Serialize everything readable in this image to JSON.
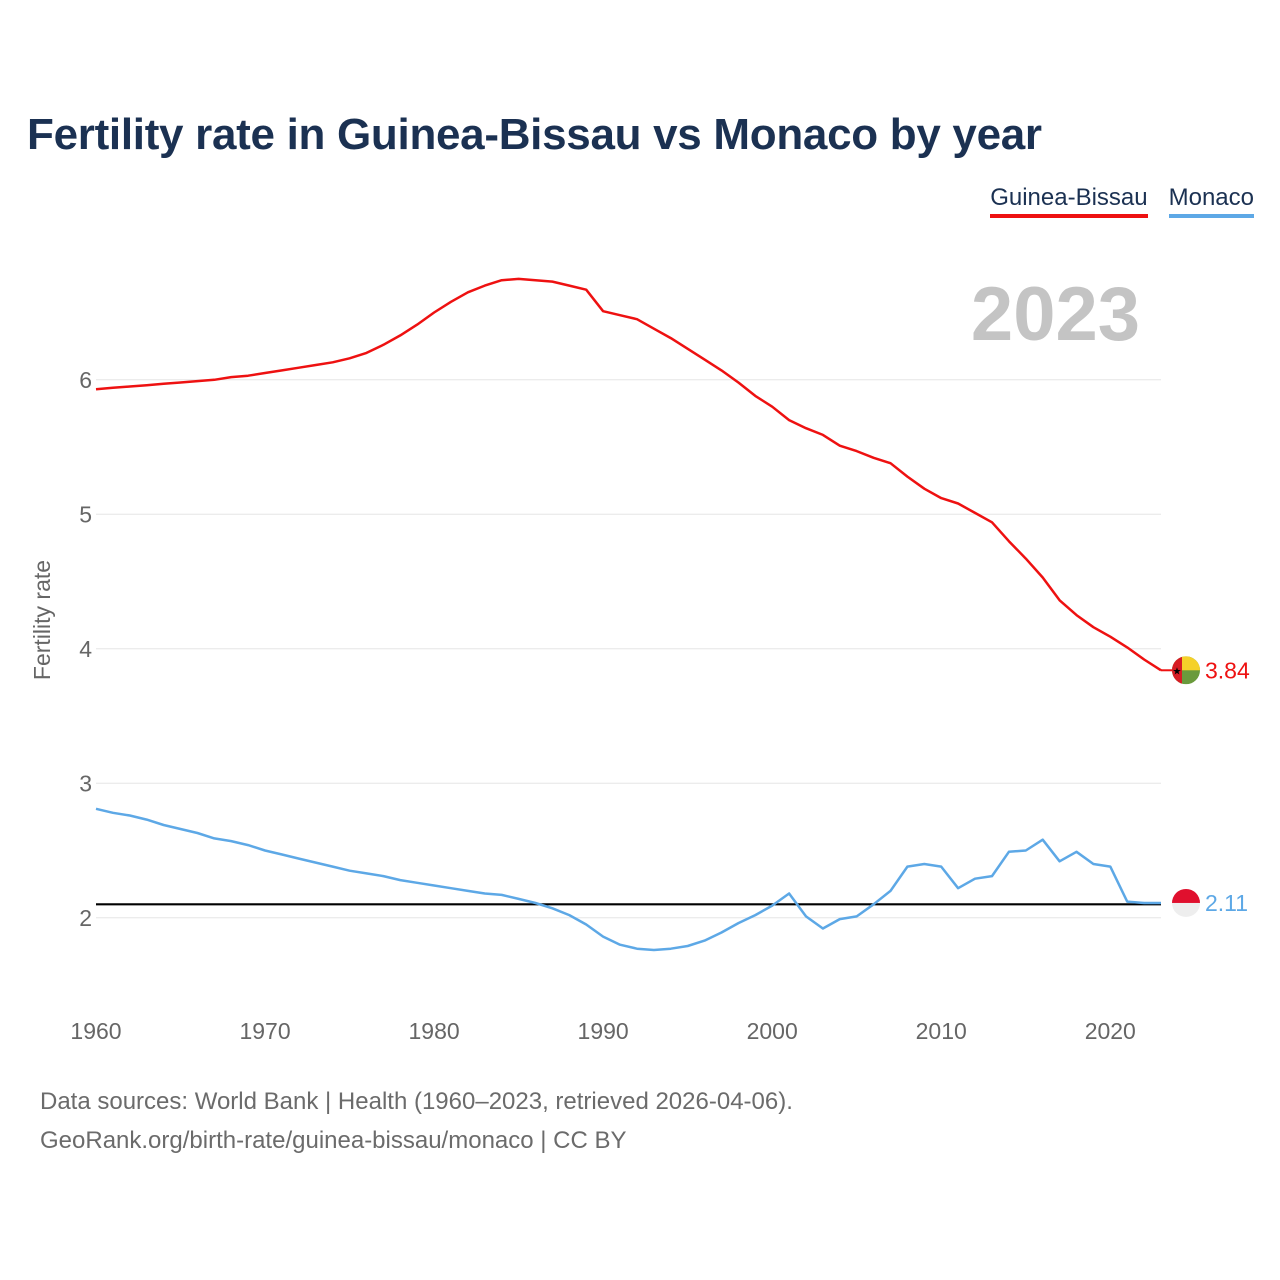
{
  "title": "Fertility rate in Guinea-Bissau vs Monaco by year",
  "legend": [
    {
      "label": "Guinea-Bissau",
      "color": "#ee1111"
    },
    {
      "label": "Monaco",
      "color": "#5da8e6"
    }
  ],
  "footer": {
    "source": "Data sources: World Bank | Health (1960–2023, retrieved 2026-04-06).",
    "credit": "GeoRank.org/birth-rate/guinea-bissau/monaco | CC BY"
  },
  "chart_data": {
    "type": "line",
    "title": "Fertility rate in Guinea-Bissau vs Monaco by year",
    "year_label": "2023",
    "xlabel": "",
    "ylabel": "Fertility rate",
    "xlim": [
      1960,
      2023
    ],
    "ylim": [
      1.5,
      6.95
    ],
    "x_ticks": [
      1960,
      1970,
      1980,
      1990,
      2000,
      2010,
      2020
    ],
    "y_ticks": [
      2,
      3,
      4,
      5,
      6
    ],
    "grid": true,
    "reference_line": {
      "value": 2.1,
      "color": "#000000"
    },
    "x": [
      1960,
      1961,
      1962,
      1963,
      1964,
      1965,
      1966,
      1967,
      1968,
      1969,
      1970,
      1971,
      1972,
      1973,
      1974,
      1975,
      1976,
      1977,
      1978,
      1979,
      1980,
      1981,
      1982,
      1983,
      1984,
      1985,
      1986,
      1987,
      1988,
      1989,
      1990,
      1991,
      1992,
      1993,
      1994,
      1995,
      1996,
      1997,
      1998,
      1999,
      2000,
      2001,
      2002,
      2003,
      2004,
      2005,
      2006,
      2007,
      2008,
      2009,
      2010,
      2011,
      2012,
      2013,
      2014,
      2015,
      2016,
      2017,
      2018,
      2019,
      2020,
      2021,
      2022,
      2023
    ],
    "series": [
      {
        "name": "Guinea-Bissau",
        "color": "#ee1111",
        "end_label": "3.84",
        "values": [
          5.93,
          5.94,
          5.95,
          5.96,
          5.97,
          5.98,
          5.99,
          6.0,
          6.02,
          6.03,
          6.05,
          6.07,
          6.09,
          6.11,
          6.13,
          6.16,
          6.2,
          6.26,
          6.33,
          6.41,
          6.5,
          6.58,
          6.65,
          6.7,
          6.74,
          6.75,
          6.74,
          6.73,
          6.7,
          6.67,
          6.51,
          6.48,
          6.45,
          6.38,
          6.31,
          6.23,
          6.15,
          6.07,
          5.98,
          5.88,
          5.8,
          5.7,
          5.64,
          5.59,
          5.51,
          5.47,
          5.42,
          5.38,
          5.28,
          5.19,
          5.12,
          5.08,
          5.01,
          4.94,
          4.8,
          4.67,
          4.53,
          4.36,
          4.25,
          4.16,
          4.09,
          4.01,
          3.92,
          3.84
        ]
      },
      {
        "name": "Monaco",
        "color": "#5da8e6",
        "end_label": "2.11",
        "values": [
          2.81,
          2.78,
          2.76,
          2.73,
          2.69,
          2.66,
          2.63,
          2.59,
          2.57,
          2.54,
          2.5,
          2.47,
          2.44,
          2.41,
          2.38,
          2.35,
          2.33,
          2.31,
          2.28,
          2.26,
          2.24,
          2.22,
          2.2,
          2.18,
          2.17,
          2.14,
          2.11,
          2.07,
          2.02,
          1.95,
          1.86,
          1.8,
          1.77,
          1.76,
          1.77,
          1.79,
          1.83,
          1.89,
          1.96,
          2.02,
          2.09,
          2.18,
          2.01,
          1.92,
          1.99,
          2.01,
          2.1,
          2.2,
          2.38,
          2.4,
          2.38,
          2.22,
          2.29,
          2.31,
          2.49,
          2.5,
          2.58,
          2.42,
          2.49,
          2.4,
          2.38,
          2.12,
          2.11,
          2.11
        ]
      }
    ]
  }
}
